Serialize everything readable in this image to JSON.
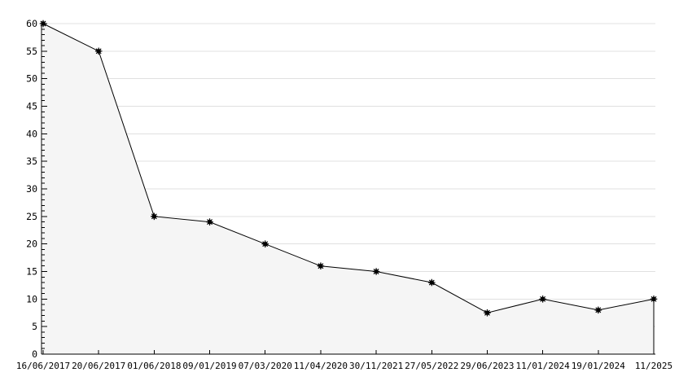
{
  "chart_data": {
    "type": "area",
    "title": "",
    "xlabel": "",
    "ylabel": "",
    "categories": [
      "16/06/2017",
      "20/06/2017",
      "01/06/2018",
      "09/01/2019",
      "07/03/2020",
      "11/04/2020",
      "30/11/2021",
      "27/05/2022",
      "29/06/2023",
      "11/01/2024",
      "19/01/2024",
      "11/2025"
    ],
    "values": [
      60,
      55,
      25,
      24,
      20,
      16,
      15,
      13,
      7.5,
      10,
      8,
      10
    ],
    "ylim": [
      0,
      60
    ],
    "y_tick_step": 5,
    "y_minor_tick_step": 1,
    "y_tick_labels": [
      "0",
      "5",
      "10",
      "15",
      "20",
      "25",
      "30",
      "35",
      "40",
      "45",
      "50",
      "55",
      "60"
    ],
    "grid": true,
    "legend_position": "none",
    "marker": "asterisk-dot"
  },
  "style": {
    "background_color": "#ffffff",
    "line_color": "#000000",
    "marker_color": "#000000",
    "area_fill_color": "#f5f5f5",
    "gridline_color": "#e0e0e0",
    "axis_color": "#000000",
    "label_color": "#000000"
  }
}
